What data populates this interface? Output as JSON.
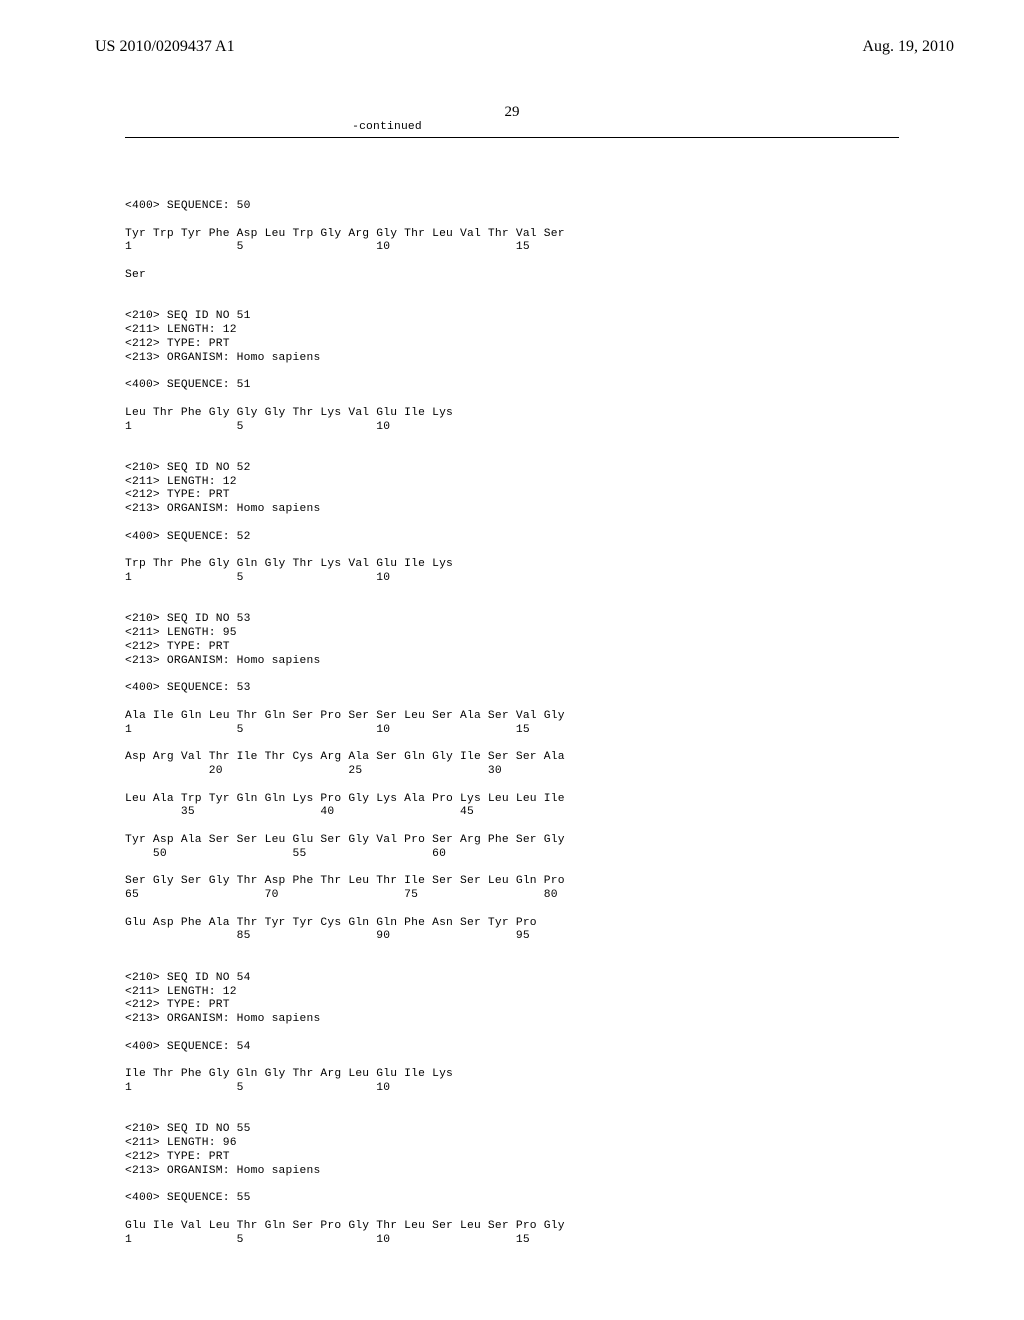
{
  "header": {
    "pubno": "US 2010/0209437 A1",
    "date": "Aug. 19, 2010"
  },
  "page_number": "29",
  "continued": "-continued",
  "seq50": {
    "tag": "<400> SEQUENCE: 50",
    "line1": "Tyr Trp Tyr Phe Asp Leu Trp Gly Arg Gly Thr Leu Val Thr Val Ser",
    "pos1": "1               5                   10                  15",
    "line2": "Ser"
  },
  "seq51": {
    "h1": "<210> SEQ ID NO 51",
    "h2": "<211> LENGTH: 12",
    "h3": "<212> TYPE: PRT",
    "h4": "<213> ORGANISM: Homo sapiens",
    "tag": "<400> SEQUENCE: 51",
    "line1": "Leu Thr Phe Gly Gly Gly Thr Lys Val Glu Ile Lys",
    "pos1": "1               5                   10"
  },
  "seq52": {
    "h1": "<210> SEQ ID NO 52",
    "h2": "<211> LENGTH: 12",
    "h3": "<212> TYPE: PRT",
    "h4": "<213> ORGANISM: Homo sapiens",
    "tag": "<400> SEQUENCE: 52",
    "line1": "Trp Thr Phe Gly Gln Gly Thr Lys Val Glu Ile Lys",
    "pos1": "1               5                   10"
  },
  "seq53": {
    "h1": "<210> SEQ ID NO 53",
    "h2": "<211> LENGTH: 95",
    "h3": "<212> TYPE: PRT",
    "h4": "<213> ORGANISM: Homo sapiens",
    "tag": "<400> SEQUENCE: 53",
    "l1": "Ala Ile Gln Leu Thr Gln Ser Pro Ser Ser Leu Ser Ala Ser Val Gly",
    "p1": "1               5                   10                  15",
    "l2": "Asp Arg Val Thr Ile Thr Cys Arg Ala Ser Gln Gly Ile Ser Ser Ala",
    "p2": "            20                  25                  30",
    "l3": "Leu Ala Trp Tyr Gln Gln Lys Pro Gly Lys Ala Pro Lys Leu Leu Ile",
    "p3": "        35                  40                  45",
    "l4": "Tyr Asp Ala Ser Ser Leu Glu Ser Gly Val Pro Ser Arg Phe Ser Gly",
    "p4": "    50                  55                  60",
    "l5": "Ser Gly Ser Gly Thr Asp Phe Thr Leu Thr Ile Ser Ser Leu Gln Pro",
    "p5": "65                  70                  75                  80",
    "l6": "Glu Asp Phe Ala Thr Tyr Tyr Cys Gln Gln Phe Asn Ser Tyr Pro",
    "p6": "                85                  90                  95"
  },
  "seq54": {
    "h1": "<210> SEQ ID NO 54",
    "h2": "<211> LENGTH: 12",
    "h3": "<212> TYPE: PRT",
    "h4": "<213> ORGANISM: Homo sapiens",
    "tag": "<400> SEQUENCE: 54",
    "line1": "Ile Thr Phe Gly Gln Gly Thr Arg Leu Glu Ile Lys",
    "pos1": "1               5                   10"
  },
  "seq55": {
    "h1": "<210> SEQ ID NO 55",
    "h2": "<211> LENGTH: 96",
    "h3": "<212> TYPE: PRT",
    "h4": "<213> ORGANISM: Homo sapiens",
    "tag": "<400> SEQUENCE: 55",
    "line1": "Glu Ile Val Leu Thr Gln Ser Pro Gly Thr Leu Ser Leu Ser Pro Gly",
    "pos1": "1               5                   10                  15"
  }
}
